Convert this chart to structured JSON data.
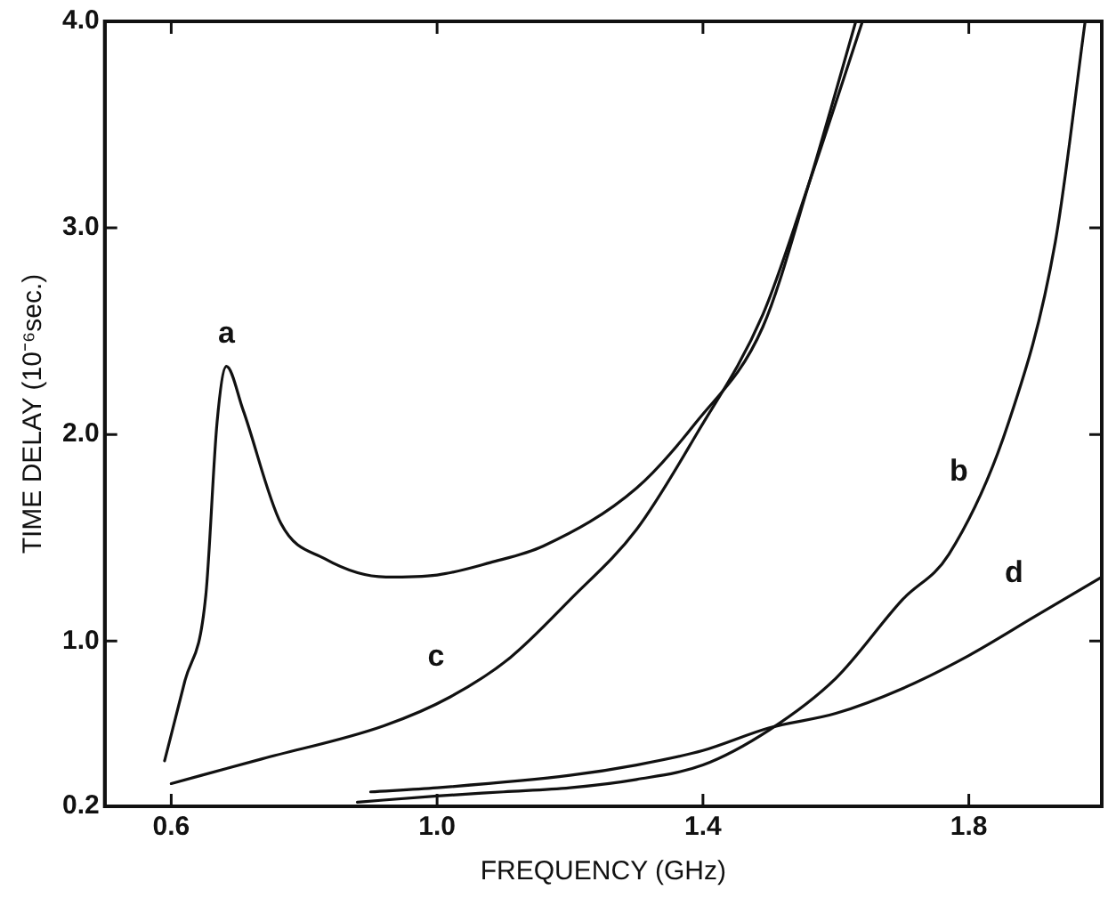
{
  "chart_data": {
    "type": "line",
    "xlabel": "FREQUENCY (GHz)",
    "ylabel": "TIME DELAY (10⁻⁶sec.)",
    "xlim": [
      0.5,
      2.0
    ],
    "ylim": [
      0.2,
      4.0
    ],
    "xticks": [
      0.6,
      {
        "value": 1.0,
        "label": "1.0"
      },
      1.4,
      1.8
    ],
    "yticks": [
      0.2,
      {
        "value": 1.0,
        "label": "1.0"
      },
      {
        "value": 2.0,
        "label": "2.0"
      },
      {
        "value": 3.0,
        "label": "3.0"
      },
      {
        "value": 4.0,
        "label": "4.0"
      }
    ],
    "grid": false,
    "legend": false,
    "marker": "none",
    "line_style": "solid",
    "series": [
      {
        "name": "a",
        "color": "#111111",
        "x": [
          0.59,
          0.62,
          0.652,
          0.669,
          0.683,
          0.708,
          0.765,
          0.83,
          0.923,
          1.0,
          1.08,
          1.16,
          1.3,
          1.39,
          1.49,
          1.56,
          1.63
        ],
        "values": [
          0.42,
          0.8,
          1.22,
          2.06,
          2.33,
          2.12,
          1.57,
          1.4,
          1.31,
          1.32,
          1.38,
          1.46,
          1.74,
          2.06,
          2.52,
          3.22,
          4.0
        ]
      },
      {
        "name": "b",
        "color": "#111111",
        "x": [
          0.88,
          1.0,
          1.1,
          1.2,
          1.3,
          1.4,
          1.5,
          1.6,
          1.7,
          1.77,
          1.86,
          1.93,
          1.975
        ],
        "values": [
          0.22,
          0.25,
          0.27,
          0.29,
          0.33,
          0.4,
          0.57,
          0.82,
          1.2,
          1.42,
          2.06,
          2.93,
          4.0
        ]
      },
      {
        "name": "c",
        "color": "#111111",
        "x": [
          0.6,
          0.737,
          0.92,
          1.02,
          1.11,
          1.2,
          1.3,
          1.39,
          1.49,
          1.56,
          1.64
        ],
        "values": [
          0.31,
          0.43,
          0.59,
          0.73,
          0.92,
          1.2,
          1.54,
          2.0,
          2.58,
          3.22,
          4.0
        ]
      },
      {
        "name": "d",
        "color": "#111111",
        "x": [
          0.9,
          1.0,
          1.2,
          1.3,
          1.4,
          1.5,
          1.6,
          1.7,
          1.8,
          1.9,
          2.0
        ],
        "values": [
          0.27,
          0.29,
          0.35,
          0.4,
          0.47,
          0.58,
          0.65,
          0.77,
          0.93,
          1.12,
          1.31
        ]
      }
    ]
  }
}
